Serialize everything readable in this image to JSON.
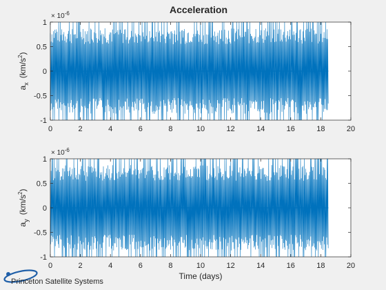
{
  "figure": {
    "background": "#f0f0f0"
  },
  "chart_data": [
    {
      "type": "line",
      "title": "Acceleration",
      "xlabel": "",
      "ylabel": {
        "base": "a",
        "subscript": "x",
        "unit_open": "(km/s",
        "unit_sup": "2",
        "unit_close": ")"
      },
      "exponent": "× 10",
      "exponent_power": "-6",
      "xlim": [
        0,
        20
      ],
      "ylim": [
        -1,
        1
      ],
      "xticks": [
        0,
        2,
        4,
        6,
        8,
        10,
        12,
        14,
        16,
        18,
        20
      ],
      "yticks": [
        -1,
        -0.5,
        0,
        0.5,
        1
      ],
      "ytick_labels": [
        "-1",
        "-0.5",
        "0",
        "0.5",
        "1"
      ],
      "grid": false,
      "color": "#0072bd",
      "series": [
        {
          "t_start": 0,
          "t_end": 18.5,
          "amplitude": 1,
          "description": "dense oscillation between -1e-6 and +1e-6"
        }
      ]
    },
    {
      "type": "line",
      "title": "",
      "xlabel": "Time (days)",
      "ylabel": {
        "base": "a",
        "subscript": "y",
        "unit_open": "(km/s",
        "unit_sup": "2",
        "unit_close": ")"
      },
      "exponent": "× 10",
      "exponent_power": "-6",
      "xlim": [
        0,
        20
      ],
      "ylim": [
        -1,
        1
      ],
      "xticks": [
        0,
        2,
        4,
        6,
        8,
        10,
        12,
        14,
        16,
        18,
        20
      ],
      "yticks": [
        -1,
        -0.5,
        0,
        0.5,
        1
      ],
      "ytick_labels": [
        "-1",
        "-0.5",
        "0",
        "0.5",
        "1"
      ],
      "grid": false,
      "color": "#0072bd",
      "series": [
        {
          "t_start": 0,
          "t_end": 18.5,
          "amplitude": 1,
          "description": "dense oscillation between -1e-6 and +1e-6"
        }
      ]
    }
  ],
  "branding": {
    "name": "Princeton Satellite Systems",
    "logo_color": "#1f5fa8"
  }
}
